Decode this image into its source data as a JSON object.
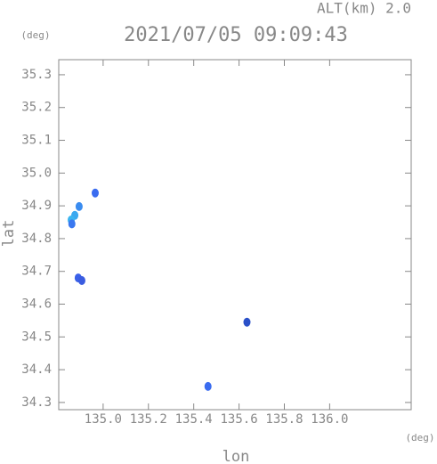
{
  "chart_data": {
    "type": "scatter",
    "title": "2021/07/05 09:09:43",
    "altitude_label": "ALT(km) 2.0",
    "y_unit": "(deg)",
    "x_unit": "(deg)",
    "xlabel": "lon",
    "ylabel": "lat",
    "x": [
      134.965,
      134.894,
      134.875,
      134.859,
      134.862,
      134.89,
      134.906,
      135.635,
      135.463
    ],
    "y": [
      34.939,
      34.898,
      34.871,
      34.857,
      34.845,
      34.68,
      34.672,
      34.545,
      34.349
    ],
    "colors": [
      "#3a6cf0",
      "#3a8cf0",
      "#3aa8f0",
      "#3ab4f0",
      "#3a78f0",
      "#3a60e8",
      "#3a5ce0",
      "#2a50c8",
      "#3a6cf0"
    ],
    "xlim": [
      134.804,
      136.36
    ],
    "ylim": [
      34.278,
      35.346
    ],
    "xticks": [
      {
        "value": 135.0,
        "label": "135.0"
      },
      135.2,
      135.4,
      135.6,
      135.8,
      {
        "value": 136.0,
        "label": "136.0"
      }
    ],
    "yticks": [
      34.3,
      34.4,
      34.5,
      34.6,
      34.7,
      34.8,
      34.9,
      {
        "value": 35.0,
        "label": "35.0"
      },
      35.1,
      35.2,
      35.3
    ]
  }
}
